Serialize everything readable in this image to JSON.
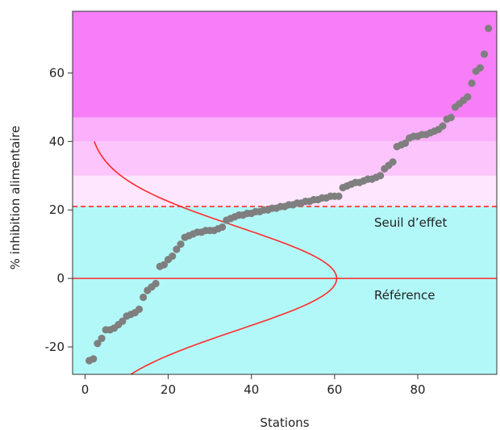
{
  "chart_data": {
    "type": "scatter",
    "xlabel": "Stations",
    "ylabel": "% inhibition alimentaire",
    "xlim": [
      -3,
      99
    ],
    "ylim": [
      -28,
      78
    ],
    "x_ticks": [
      0,
      20,
      40,
      60,
      80
    ],
    "y_ticks": [
      -20,
      0,
      20,
      40,
      60
    ],
    "grid": false,
    "bands": [
      {
        "from": -28,
        "to": 21,
        "color": "#b3f8f8"
      },
      {
        "from": 21,
        "to": 30,
        "color": "#fee6fe"
      },
      {
        "from": 30,
        "to": 40,
        "color": "#fcc6fc"
      },
      {
        "from": 40,
        "to": 47,
        "color": "#fab0fa"
      },
      {
        "from": 47,
        "to": 78,
        "color": "#f87ef8"
      }
    ],
    "reference_line": {
      "y": 0,
      "label": "Référence",
      "color": "#ff2a2a"
    },
    "threshold_line": {
      "y": 21,
      "label": "Seuil d’effet",
      "color": "#ff2a2a",
      "style": "dashed"
    },
    "distribution_curve": {
      "color": "#ff2a2a",
      "y_range": [
        -28,
        40
      ],
      "x_base": 0.5,
      "peak": 60.5,
      "mean": 0,
      "sd": 15
    },
    "series": [
      {
        "color": "#7f7f7f",
        "points": [
          [
            1,
            -24
          ],
          [
            2,
            -23.5
          ],
          [
            3,
            -19
          ],
          [
            4,
            -17.5
          ],
          [
            5,
            -15
          ],
          [
            6,
            -15
          ],
          [
            7,
            -14.5
          ],
          [
            8,
            -13.5
          ],
          [
            9,
            -12.5
          ],
          [
            10,
            -11
          ],
          [
            11,
            -10.5
          ],
          [
            12,
            -10
          ],
          [
            13,
            -9
          ],
          [
            14,
            -5.5
          ],
          [
            15,
            -3.5
          ],
          [
            16,
            -2.5
          ],
          [
            17,
            -1.5
          ],
          [
            18,
            3.5
          ],
          [
            19,
            4
          ],
          [
            20,
            5.5
          ],
          [
            21,
            6.5
          ],
          [
            22,
            8.5
          ],
          [
            23,
            10
          ],
          [
            24,
            12
          ],
          [
            25,
            12.5
          ],
          [
            26,
            13
          ],
          [
            27,
            13.5
          ],
          [
            28,
            13.5
          ],
          [
            29,
            14
          ],
          [
            30,
            14
          ],
          [
            31,
            14
          ],
          [
            32,
            14.5
          ],
          [
            33,
            15
          ],
          [
            34,
            17
          ],
          [
            35,
            17.5
          ],
          [
            36,
            18
          ],
          [
            37,
            18.5
          ],
          [
            38,
            18.5
          ],
          [
            39,
            19
          ],
          [
            40,
            19
          ],
          [
            41,
            19.5
          ],
          [
            42,
            19.5
          ],
          [
            43,
            20
          ],
          [
            44,
            20
          ],
          [
            45,
            20.5
          ],
          [
            46,
            20.5
          ],
          [
            47,
            21
          ],
          [
            48,
            21
          ],
          [
            49,
            21.5
          ],
          [
            50,
            21.5
          ],
          [
            51,
            22
          ],
          [
            52,
            22
          ],
          [
            53,
            22.5
          ],
          [
            54,
            22.5
          ],
          [
            55,
            23
          ],
          [
            56,
            23
          ],
          [
            57,
            23.5
          ],
          [
            58,
            23.5
          ],
          [
            59,
            24
          ],
          [
            60,
            24
          ],
          [
            61,
            24
          ],
          [
            62,
            26.5
          ],
          [
            63,
            27
          ],
          [
            64,
            27.5
          ],
          [
            65,
            28
          ],
          [
            66,
            28
          ],
          [
            67,
            28.5
          ],
          [
            68,
            29
          ],
          [
            69,
            29
          ],
          [
            70,
            29.5
          ],
          [
            71,
            30
          ],
          [
            72,
            32
          ],
          [
            73,
            33
          ],
          [
            74,
            34
          ],
          [
            75,
            38.5
          ],
          [
            76,
            39
          ],
          [
            77,
            39.5
          ],
          [
            78,
            41
          ],
          [
            79,
            41.5
          ],
          [
            80,
            41.5
          ],
          [
            81,
            42
          ],
          [
            82,
            42
          ],
          [
            83,
            42.5
          ],
          [
            84,
            43
          ],
          [
            85,
            43.5
          ],
          [
            86,
            44.5
          ],
          [
            87,
            46.5
          ],
          [
            88,
            47
          ],
          [
            89,
            50
          ],
          [
            90,
            51
          ],
          [
            91,
            52
          ],
          [
            92,
            53
          ],
          [
            93,
            57
          ],
          [
            94,
            60.5
          ],
          [
            95,
            61.5
          ],
          [
            96,
            65.5
          ],
          [
            97,
            73
          ]
        ]
      }
    ]
  }
}
